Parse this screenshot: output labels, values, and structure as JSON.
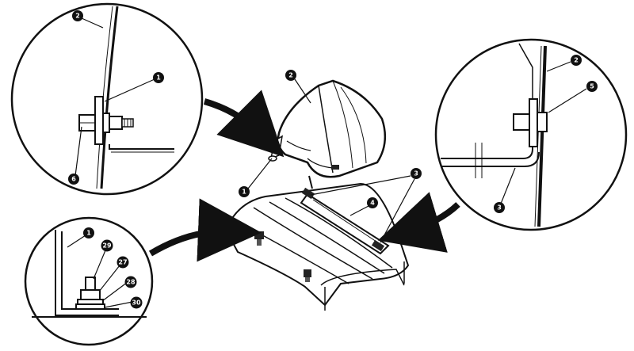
{
  "callouts": [
    {
      "id": "c-a2",
      "label": "2"
    },
    {
      "id": "c-a1",
      "label": "1"
    },
    {
      "id": "c-a6",
      "label": "6"
    },
    {
      "id": "c-m2",
      "label": "2"
    },
    {
      "id": "c-m1",
      "label": "1"
    },
    {
      "id": "c-m3",
      "label": "3"
    },
    {
      "id": "c-m4",
      "label": "4"
    },
    {
      "id": "c-b2",
      "label": "2"
    },
    {
      "id": "c-b5",
      "label": "5"
    },
    {
      "id": "c-b3",
      "label": "3"
    },
    {
      "id": "c-c1",
      "label": "1"
    },
    {
      "id": "c-c29",
      "label": "29"
    },
    {
      "id": "c-c27",
      "label": "27"
    },
    {
      "id": "c-c28",
      "label": "28"
    },
    {
      "id": "c-c30",
      "label": "30"
    }
  ]
}
